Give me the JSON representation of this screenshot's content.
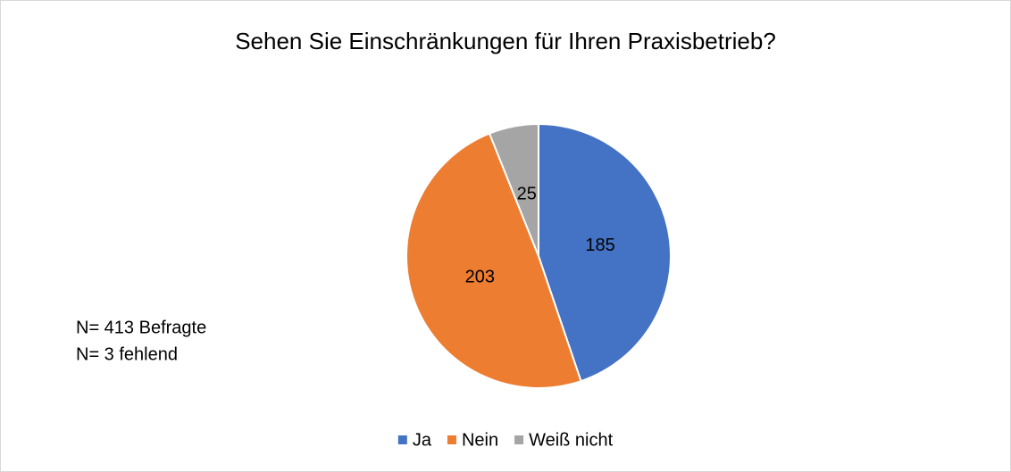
{
  "chart_data": {
    "type": "pie",
    "title": "Sehen Sie Einschränkungen für Ihren Praxisbetrieb?",
    "categories": [
      "Ja",
      "Nein",
      "Weiß nicht"
    ],
    "values": [
      185,
      203,
      25
    ],
    "colors": [
      "#4472c4",
      "#ed7d31",
      "#a5a5a5"
    ],
    "annotations": [
      "N= 413 Befragte",
      "N= 3 fehlend"
    ],
    "legend": "bottom"
  }
}
